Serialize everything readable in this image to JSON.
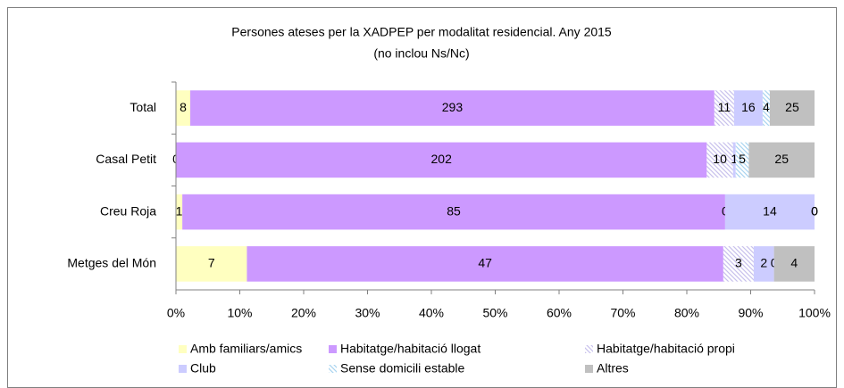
{
  "chart_data": {
    "type": "bar",
    "orientation": "horizontal",
    "stacked": "percent",
    "title": "Persones ateses per la XADPEP per modalitat residencial. Any 2015",
    "subtitle": "(no inclou Ns/Nc)",
    "categories": [
      "Total",
      "Casal Petit",
      "Creu Roja",
      "Metges del Món"
    ],
    "series": [
      {
        "name": "Amb familiars/amics",
        "color": "#ffffc0",
        "values": [
          8,
          0,
          1,
          7
        ]
      },
      {
        "name": "Habitatge/habitació llogat",
        "color": "#cc99ff",
        "values": [
          293,
          202,
          85,
          47
        ]
      },
      {
        "name": "Habitatge/habitació propi",
        "color": "#c8c0ec",
        "hatch": true,
        "values": [
          11,
          10,
          0,
          3
        ]
      },
      {
        "name": "Club",
        "color": "#ccccff",
        "values": [
          16,
          1,
          14,
          2
        ]
      },
      {
        "name": "Sense domicili estable",
        "color": "#a8d4f0",
        "hatch": true,
        "values": [
          4,
          5,
          0,
          0
        ]
      },
      {
        "name": "Altres",
        "color": "#c0c0c0",
        "values": [
          25,
          25,
          0,
          4
        ]
      }
    ],
    "xlim": [
      0,
      100
    ],
    "xticks": [
      {
        "value": 0,
        "label": "0%"
      },
      {
        "value": 10,
        "label": "10%"
      },
      {
        "value": 20,
        "label": "20%"
      },
      {
        "value": 30,
        "label": "30%"
      },
      {
        "value": 40,
        "label": "40%"
      },
      {
        "value": 50,
        "label": "50%"
      },
      {
        "value": 60,
        "label": "60%"
      },
      {
        "value": 70,
        "label": "70%"
      },
      {
        "value": 80,
        "label": "80%"
      },
      {
        "value": 90,
        "label": "90%"
      },
      {
        "value": 100,
        "label": "100%"
      }
    ],
    "legend": "bottom"
  }
}
